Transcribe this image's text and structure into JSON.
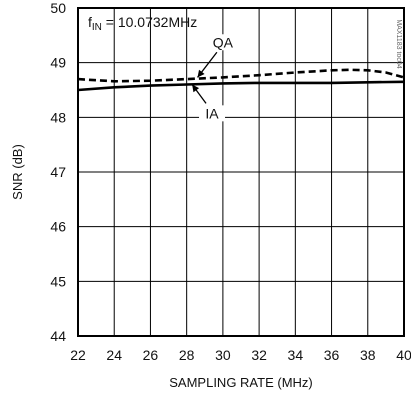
{
  "chart_data": {
    "type": "line",
    "title": "",
    "annotation": {
      "f_main": "f",
      "f_sub": "IN",
      "f_value": " = 10.0732MHz"
    },
    "xlabel": "SAMPLING RATE (MHz)",
    "ylabel": "SNR (dB)",
    "xlim": [
      22,
      40
    ],
    "ylim": [
      44,
      50
    ],
    "xticks": [
      22,
      24,
      26,
      28,
      30,
      32,
      34,
      36,
      38,
      40
    ],
    "yticks": [
      44,
      45,
      46,
      47,
      48,
      49,
      50
    ],
    "grid": true,
    "watermark": "MAX1183 toc04",
    "series": [
      {
        "name": "QA",
        "style": "dashed",
        "x": [
          22,
          24,
          26,
          28,
          30,
          32,
          34,
          36,
          37,
          38,
          39,
          40
        ],
        "y": [
          48.7,
          48.66,
          48.67,
          48.7,
          48.73,
          48.77,
          48.82,
          48.86,
          48.87,
          48.86,
          48.82,
          48.73
        ]
      },
      {
        "name": "IA",
        "style": "solid",
        "x": [
          22,
          24,
          26,
          28,
          30,
          32,
          34,
          36,
          38,
          40
        ],
        "y": [
          48.5,
          48.55,
          48.58,
          48.6,
          48.62,
          48.63,
          48.63,
          48.63,
          48.64,
          48.65
        ]
      }
    ],
    "labels": [
      {
        "text": "QA",
        "at_x": 28.6,
        "at_y": 48.73,
        "text_x": 30.0,
        "text_y": 49.3
      },
      {
        "text": "IA",
        "at_x": 28.3,
        "at_y": 48.6,
        "text_x": 29.4,
        "text_y": 48.0
      }
    ]
  }
}
